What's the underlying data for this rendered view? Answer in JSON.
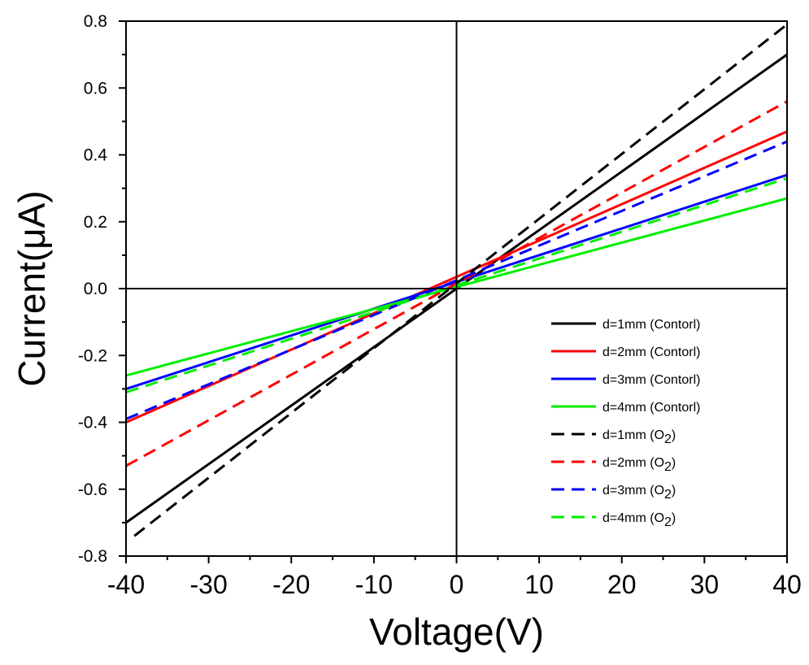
{
  "chart_data": {
    "type": "line",
    "title": "",
    "xlabel": "Voltage(V)",
    "ylabel": "Current(μA)",
    "xlim": [
      -40,
      40
    ],
    "ylim": [
      -0.8,
      0.8
    ],
    "x_ticks": [
      "-40",
      "-30",
      "-20",
      "-10",
      "0",
      "10",
      "20",
      "30",
      "40"
    ],
    "y_ticks": [
      "-0.8",
      "-0.6",
      "-0.4",
      "-0.2",
      "0.0",
      "0.2",
      "0.4",
      "0.6",
      "0.8"
    ],
    "grid": false,
    "legend_position": "bottom-right",
    "series": [
      {
        "name": "d=1mm (Contorl)",
        "color": "#000000",
        "dash": "solid",
        "x": [
          -40,
          40
        ],
        "y": [
          -0.7,
          0.7
        ]
      },
      {
        "name": "d=2mm (Contorl)",
        "color": "#ff0000",
        "dash": "solid",
        "x": [
          -40,
          40
        ],
        "y": [
          -0.4,
          0.47
        ]
      },
      {
        "name": "d=3mm (Contorl)",
        "color": "#0000ff",
        "dash": "solid",
        "x": [
          -40,
          40
        ],
        "y": [
          -0.3,
          0.34
        ]
      },
      {
        "name": "d=4mm (Contorl)",
        "color": "#00ee00",
        "dash": "solid",
        "x": [
          -40,
          40
        ],
        "y": [
          -0.26,
          0.27
        ]
      },
      {
        "name": "d=1mm (O2)",
        "color": "#000000",
        "dash": "dashed",
        "x": [
          -39,
          40
        ],
        "y": [
          -0.74,
          0.79
        ]
      },
      {
        "name": "d=2mm (O2)",
        "color": "#ff0000",
        "dash": "dashed",
        "x": [
          -40,
          40
        ],
        "y": [
          -0.53,
          0.56
        ]
      },
      {
        "name": "d=3mm (O2)",
        "color": "#0000ff",
        "dash": "dashed",
        "x": [
          -40,
          40
        ],
        "y": [
          -0.39,
          0.44
        ]
      },
      {
        "name": "d=4mm (O2)",
        "color": "#00ee00",
        "dash": "dashed",
        "x": [
          -40,
          40
        ],
        "y": [
          -0.31,
          0.33
        ]
      }
    ],
    "legend_labels": [
      {
        "text": "d=1mm (Contorl)"
      },
      {
        "text": "d=2mm (Contorl)"
      },
      {
        "text": "d=3mm (Contorl)"
      },
      {
        "text": "d=4mm (Contorl)"
      },
      {
        "text": "d=1mm (O",
        "sub": "2",
        "tail": ")"
      },
      {
        "text": "d=2mm (O",
        "sub": "2",
        "tail": ")"
      },
      {
        "text": "d=3mm (O",
        "sub": "2",
        "tail": ")"
      },
      {
        "text": "d=4mm (O",
        "sub": "2",
        "tail": ")"
      }
    ]
  }
}
